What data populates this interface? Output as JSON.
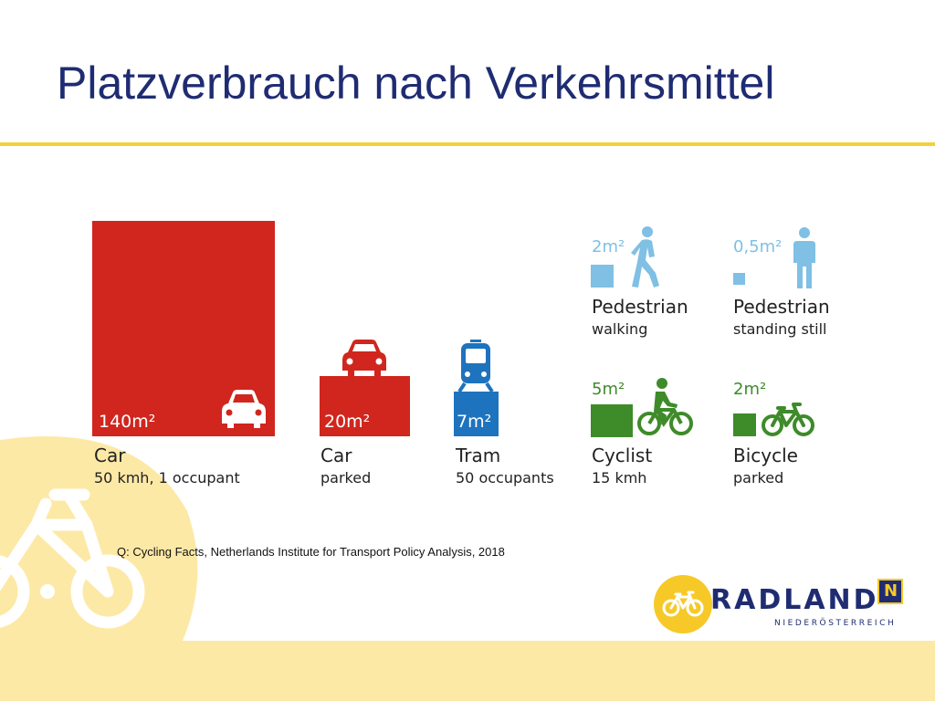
{
  "slide": {
    "title": "Platzverbrauch nach Verkehrsmittel",
    "source": "Q: Cycling Facts, Netherlands Institute for Transport Policy Analysis, 2018"
  },
  "colors": {
    "title": "#1f2c72",
    "rule": "#f4d03a",
    "car": "#d0261e",
    "tram": "#1e73be",
    "pedestrian": "#7fc0e4",
    "cycle": "#3e8b2a",
    "logo_yellow": "#f6c928"
  },
  "items": [
    {
      "area": "140m²",
      "name": "Car",
      "sub": "50 kmh, 1 occupant",
      "icon": "car-icon"
    },
    {
      "area": "20m²",
      "name": "Car",
      "sub": "parked",
      "icon": "car-front-icon"
    },
    {
      "area": "7m²",
      "name": "Tram",
      "sub": "50 occupants",
      "icon": "tram-icon"
    },
    {
      "area": "2m²",
      "name": "Pedestrian",
      "sub": "walking",
      "icon": "walking-person-icon"
    },
    {
      "area": "0,5m²",
      "name": "Pedestrian",
      "sub": "standing still",
      "icon": "standing-person-icon"
    },
    {
      "area": "5m²",
      "name": "Cyclist",
      "sub": "15 kmh",
      "icon": "cyclist-icon"
    },
    {
      "area": "2m²",
      "name": "Bicycle",
      "sub": "parked",
      "icon": "bicycle-icon"
    }
  ],
  "logo": {
    "word": "RADLAND",
    "sub": "NIEDERÖSTERREICH",
    "badge": "N"
  }
}
